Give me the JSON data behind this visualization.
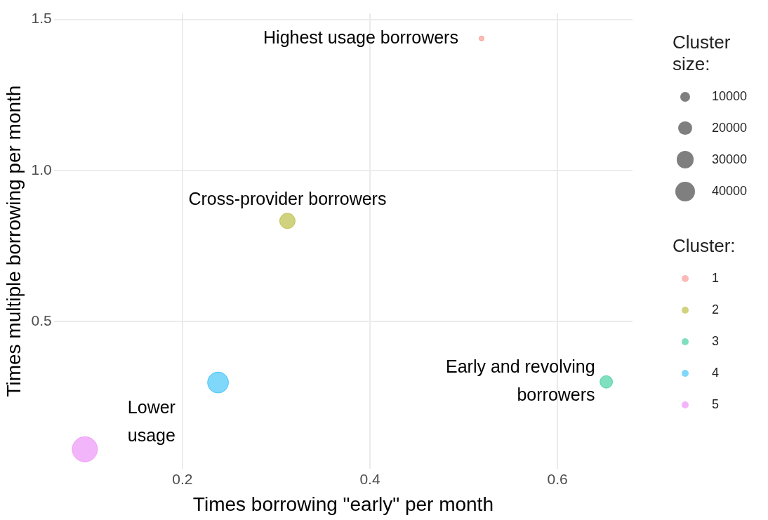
{
  "chart_data": {
    "type": "bubble",
    "xlabel": "Times borrowing \"early\" per month",
    "ylabel": "Times multiple borrowing per month",
    "legend_title": "Cluster:",
    "series": [
      {
        "name": "1",
        "color": "#f8766d",
        "x": [
          0.519
        ],
        "values": [
          1.437
        ],
        "sizes": [
          2500
        ]
      },
      {
        "name": "2",
        "color": "#a3a500",
        "x": [
          0.312
        ],
        "values": [
          0.833
        ],
        "sizes": [
          25000
        ]
      },
      {
        "name": "3",
        "color": "#00bf7d",
        "x": [
          0.652
        ],
        "values": [
          0.3
        ],
        "sizes": [
          16500
        ]
      },
      {
        "name": "4",
        "color": "#00b0f6",
        "x": [
          0.238
        ],
        "values": [
          0.298
        ],
        "sizes": [
          46000
        ]
      },
      {
        "name": "5",
        "color": "#e76bf3",
        "x": [
          0.096
        ],
        "values": [
          0.077
        ],
        "sizes": [
          66000
        ]
      }
    ],
    "size_legend": [
      10000,
      20000,
      30000,
      40000
    ],
    "xlim": [
      0.063,
      0.68
    ],
    "ylim": [
      0.012,
      1.52
    ],
    "xticks": [
      0.2,
      0.4,
      0.6
    ],
    "yticks": [
      0.5,
      {
        "value": 1,
        "label": "1.0"
      },
      1.5
    ],
    "annotations": [
      {
        "text": "Highest usage borrowers",
        "x": 0.519,
        "y": 1.437
      },
      {
        "text": "Cross-provider borrowers",
        "x": 0.312,
        "y": 0.833
      },
      {
        "text": "Early and revolving\nborrowers",
        "x": 0.652,
        "y": 0.3
      },
      {
        "text": "Lower\nusage",
        "x": 0.096,
        "y": 0.077
      },
      "Cluster size:"
    ],
    "grid": true,
    "legend": "right",
    "marker": "circle"
  }
}
